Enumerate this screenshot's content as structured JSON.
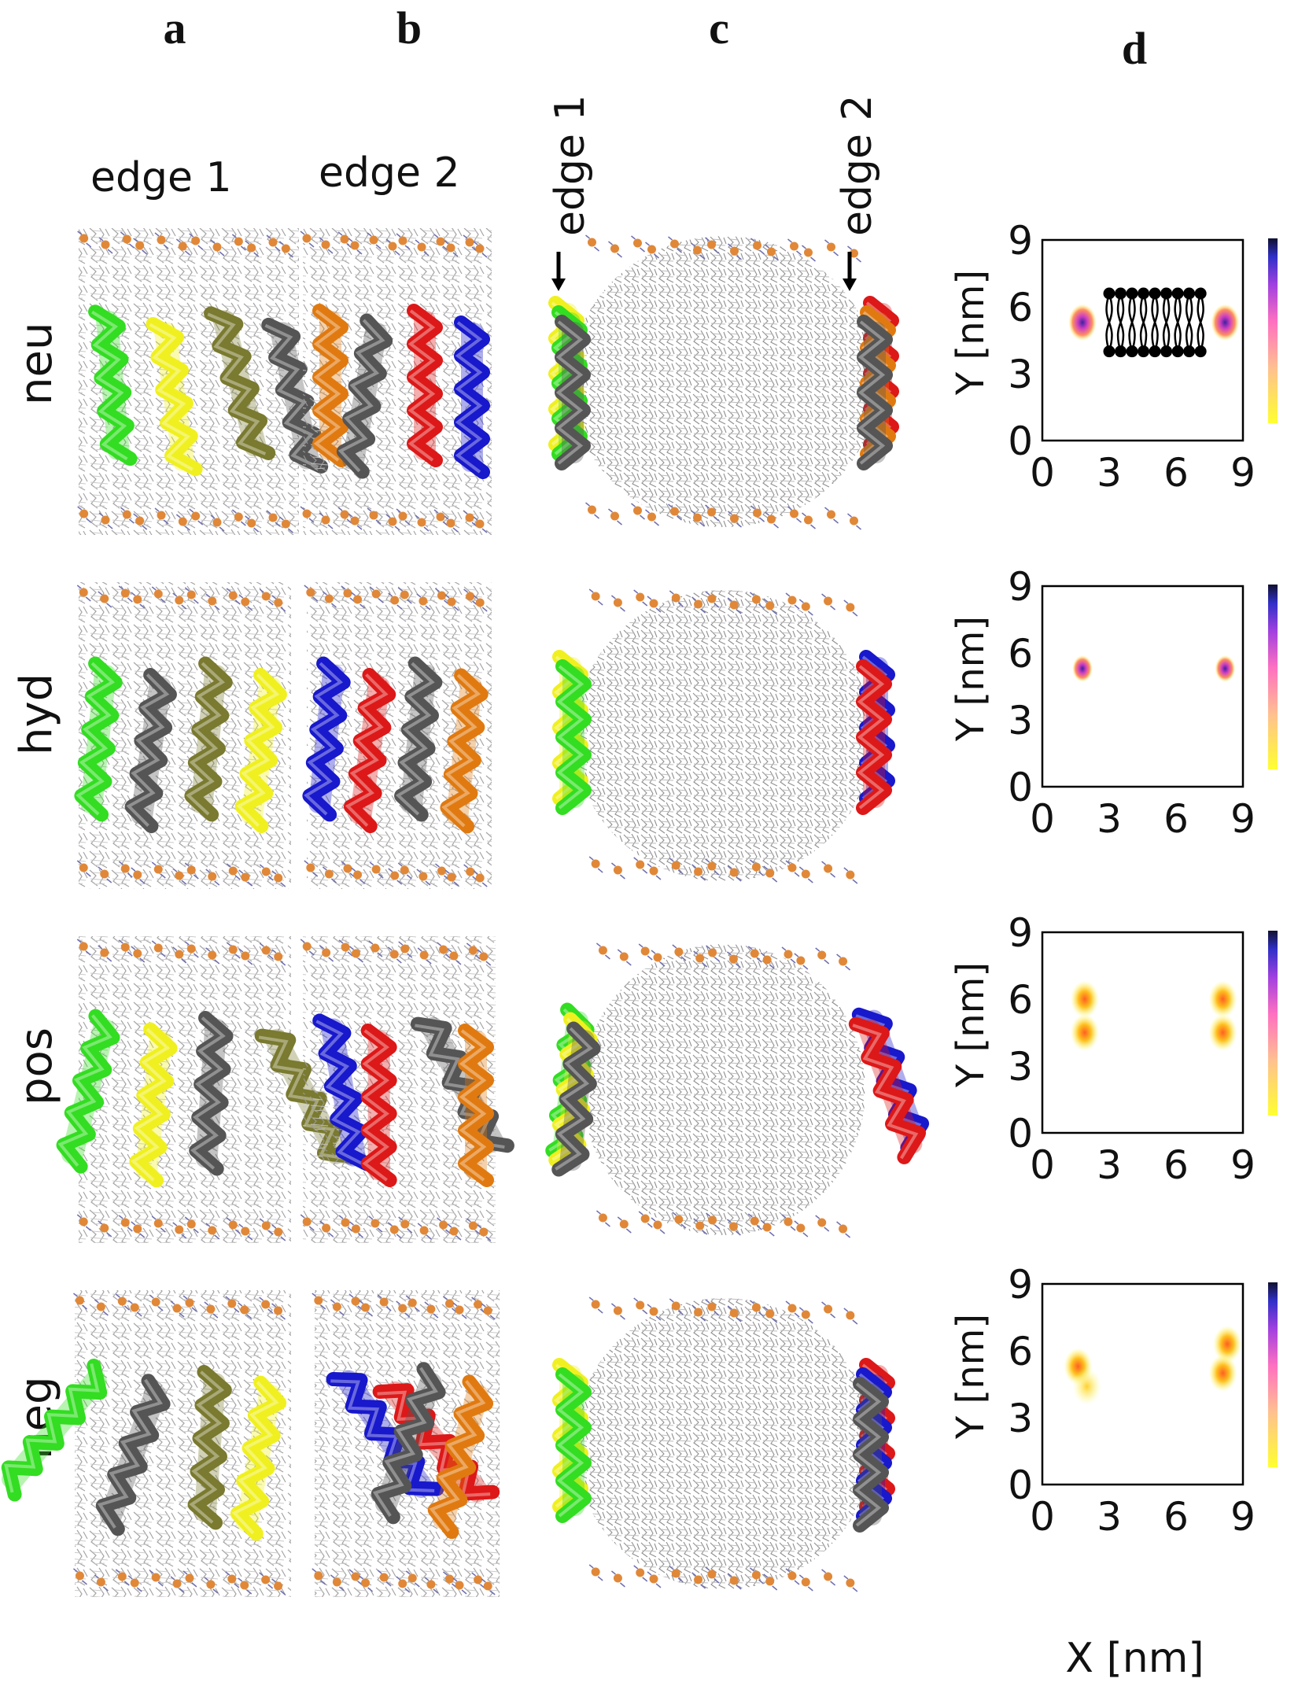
{
  "panels": {
    "a": "a",
    "b": "b",
    "c": "c",
    "d": "d"
  },
  "column_labels": {
    "edge1": "edge 1",
    "edge2": "edge 2"
  },
  "panel_c_labels": {
    "edge1": "edge 1",
    "edge2": "edge 2"
  },
  "rows": [
    {
      "label": "neu"
    },
    {
      "label": "hyd"
    },
    {
      "label": "pos"
    },
    {
      "label": "neg"
    }
  ],
  "heatmaps": {
    "y_label": "Y [nm]",
    "x_label": "X [nm]",
    "ticks": [
      "0",
      "3",
      "6",
      "9"
    ],
    "colorbar": [
      "#ffff20",
      "#ff80a0",
      "#c040e0",
      "#3030d0",
      "#101030"
    ]
  },
  "helix_colors": {
    "green": "#33dd22",
    "yellow": "#f0f020",
    "olive": "#7a7a30",
    "gray": "#555555",
    "orange": "#e07a10",
    "red": "#dd1818",
    "blue": "#1818cc"
  },
  "chart_data": [
    {
      "type": "heatmap",
      "title": "",
      "xlabel": "X [nm]",
      "ylabel": "Y [nm]",
      "xlim": [
        0,
        9
      ],
      "ylim": [
        0,
        9
      ],
      "hotspots": [
        {
          "x": 1.8,
          "y": 5.3,
          "level": "high"
        },
        {
          "x": 8.2,
          "y": 5.3,
          "level": "high"
        }
      ],
      "overlay": "lipid bilayer schematic"
    },
    {
      "type": "heatmap",
      "title": "",
      "xlabel": "X [nm]",
      "ylabel": "Y [nm]",
      "xlim": [
        0,
        9
      ],
      "ylim": [
        0,
        9
      ],
      "hotspots": [
        {
          "x": 1.8,
          "y": 5.3,
          "level": "very high"
        },
        {
          "x": 8.2,
          "y": 5.3,
          "level": "very high"
        }
      ]
    },
    {
      "type": "heatmap",
      "title": "",
      "xlabel": "X [nm]",
      "ylabel": "Y [nm]",
      "xlim": [
        0,
        9
      ],
      "ylim": [
        0,
        9
      ],
      "hotspots": [
        {
          "x": 1.9,
          "y": 6.0,
          "level": "medium"
        },
        {
          "x": 1.9,
          "y": 4.5,
          "level": "medium"
        },
        {
          "x": 8.1,
          "y": 6.0,
          "level": "medium"
        },
        {
          "x": 8.1,
          "y": 4.5,
          "level": "medium"
        }
      ]
    },
    {
      "type": "heatmap",
      "title": "",
      "xlabel": "X [nm]",
      "ylabel": "Y [nm]",
      "xlim": [
        0,
        9
      ],
      "ylim": [
        0,
        9
      ],
      "hotspots": [
        {
          "x": 1.6,
          "y": 5.3,
          "level": "medium"
        },
        {
          "x": 2.0,
          "y": 4.4,
          "level": "low"
        },
        {
          "x": 8.3,
          "y": 6.3,
          "level": "medium"
        },
        {
          "x": 8.1,
          "y": 5.0,
          "level": "medium"
        }
      ]
    }
  ]
}
